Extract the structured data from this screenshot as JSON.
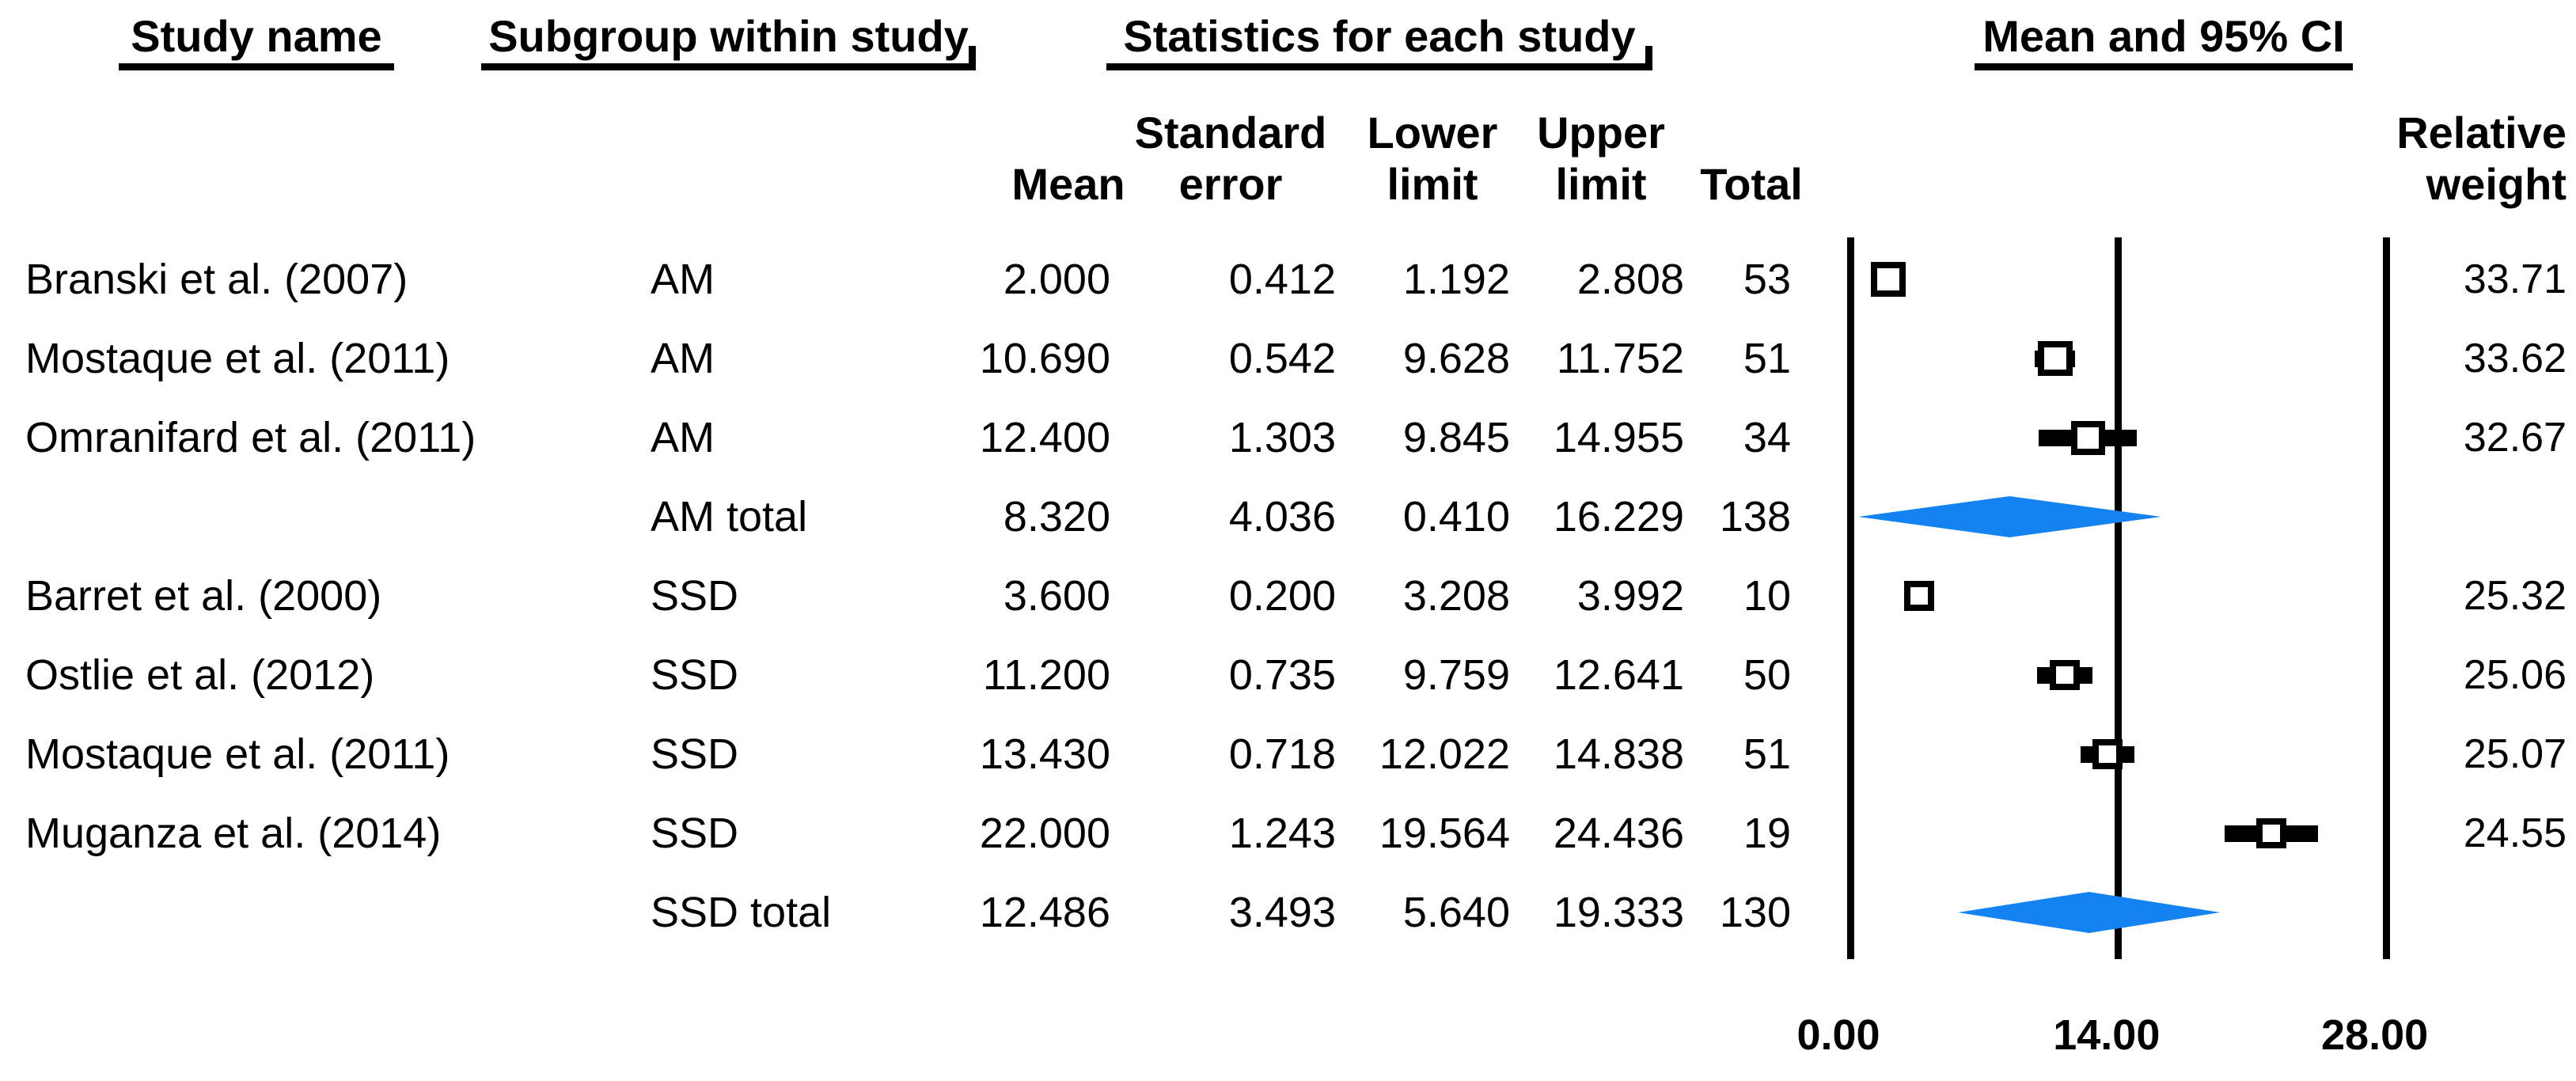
{
  "figure": {
    "group_headers": {
      "study_name": "Study name",
      "subgroup": "Subgroup within study",
      "statistics": "Statistics for each study",
      "mean_ci": "Mean and 95% CI"
    },
    "column_headers": {
      "mean": "Mean",
      "standard": "Standard",
      "error": "error",
      "lower": "Lower",
      "upper": "Upper",
      "limit_lower": "limit",
      "limit_upper": "limit",
      "total": "Total",
      "relative": "Relative",
      "weight": "weight"
    },
    "axis_ticks": [
      "0.00",
      "14.00",
      "28.00"
    ]
  },
  "colors": {
    "summary_diamond_blue": "#1482F0",
    "marker_black": "#000000"
  },
  "chart_data": {
    "type": "forest",
    "title": "",
    "effect_label": "Mean and 95% CI",
    "xlim": [
      0,
      28
    ],
    "x_ticks": [
      0,
      14,
      28
    ],
    "x_tick_labels": [
      "0.00",
      "14.00",
      "28.00"
    ],
    "grid": false,
    "groups": [
      "AM",
      "SSD"
    ],
    "columns": [
      "Study name",
      "Subgroup within study",
      "Mean",
      "Standard error",
      "Lower limit",
      "Upper limit",
      "Total",
      "Relative weight"
    ],
    "rows": [
      {
        "study": "Branski et al. (2007)",
        "subgroup": "AM",
        "mean": 2.0,
        "standard_error": 0.412,
        "lower_limit": 1.192,
        "upper_limit": 2.808,
        "total": 53,
        "relative_weight": 33.71,
        "summary": false
      },
      {
        "study": "Mostaque et al. (2011)",
        "subgroup": "AM",
        "mean": 10.69,
        "standard_error": 0.542,
        "lower_limit": 9.628,
        "upper_limit": 11.752,
        "total": 51,
        "relative_weight": 33.62,
        "summary": false
      },
      {
        "study": "Omranifard et al. (2011)",
        "subgroup": "AM",
        "mean": 12.4,
        "standard_error": 1.303,
        "lower_limit": 9.845,
        "upper_limit": 14.955,
        "total": 34,
        "relative_weight": 32.67,
        "summary": false
      },
      {
        "study": "",
        "subgroup": "AM total",
        "mean": 8.32,
        "standard_error": 4.036,
        "lower_limit": 0.41,
        "upper_limit": 16.229,
        "total": 138,
        "relative_weight": null,
        "summary": true
      },
      {
        "study": "Barret et al. (2000)",
        "subgroup": "SSD",
        "mean": 3.6,
        "standard_error": 0.2,
        "lower_limit": 3.208,
        "upper_limit": 3.992,
        "total": 10,
        "relative_weight": 25.32,
        "summary": false
      },
      {
        "study": "Ostlie et al. (2012)",
        "subgroup": "SSD",
        "mean": 11.2,
        "standard_error": 0.735,
        "lower_limit": 9.759,
        "upper_limit": 12.641,
        "total": 50,
        "relative_weight": 25.06,
        "summary": false
      },
      {
        "study": "Mostaque et al. (2011)",
        "subgroup": "SSD",
        "mean": 13.43,
        "standard_error": 0.718,
        "lower_limit": 12.022,
        "upper_limit": 14.838,
        "total": 51,
        "relative_weight": 25.07,
        "summary": false
      },
      {
        "study": "Muganza et al. (2014)",
        "subgroup": "SSD",
        "mean": 22.0,
        "standard_error": 1.243,
        "lower_limit": 19.564,
        "upper_limit": 24.436,
        "total": 19,
        "relative_weight": 24.55,
        "summary": false
      },
      {
        "study": "",
        "subgroup": "SSD total",
        "mean": 12.486,
        "standard_error": 3.493,
        "lower_limit": 5.64,
        "upper_limit": 19.333,
        "total": 130,
        "relative_weight": null,
        "summary": true
      }
    ]
  }
}
